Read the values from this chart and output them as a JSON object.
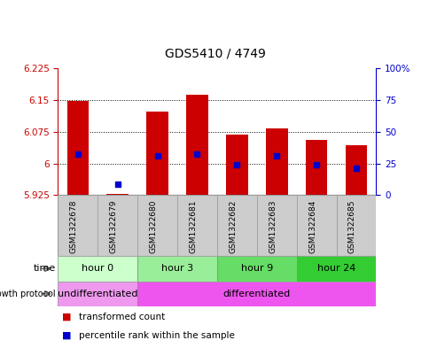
{
  "title": "GDS5410 / 4749",
  "samples": [
    "GSM1322678",
    "GSM1322679",
    "GSM1322680",
    "GSM1322681",
    "GSM1322682",
    "GSM1322683",
    "GSM1322684",
    "GSM1322685"
  ],
  "bar_bottom": 5.925,
  "bar_top": [
    6.148,
    5.928,
    6.122,
    6.163,
    6.068,
    6.082,
    6.055,
    6.043
  ],
  "blue_y": [
    6.022,
    5.952,
    6.018,
    6.022,
    5.998,
    6.018,
    5.998,
    5.988
  ],
  "bar_color": "#cc0000",
  "blue_color": "#0000cc",
  "ylim_left": [
    5.925,
    6.225
  ],
  "ylim_right": [
    0,
    100
  ],
  "yticks_left": [
    5.925,
    6.0,
    6.075,
    6.15,
    6.225
  ],
  "yticks_left_labels": [
    "5.925",
    "6",
    "6.075",
    "6.15",
    "6.225"
  ],
  "yticks_right": [
    0,
    25,
    50,
    75,
    100
  ],
  "yticks_right_labels": [
    "0",
    "25",
    "50",
    "75",
    "100%"
  ],
  "hlines": [
    6.0,
    6.075,
    6.15
  ],
  "time_groups": [
    {
      "label": "hour 0",
      "start": 0,
      "end": 2,
      "color": "#ccffcc"
    },
    {
      "label": "hour 3",
      "start": 2,
      "end": 4,
      "color": "#99ee99"
    },
    {
      "label": "hour 9",
      "start": 4,
      "end": 6,
      "color": "#66dd66"
    },
    {
      "label": "hour 24",
      "start": 6,
      "end": 8,
      "color": "#33cc33"
    }
  ],
  "protocol_groups": [
    {
      "label": "undifferentiated",
      "start": 0,
      "end": 2,
      "color": "#ee99ee"
    },
    {
      "label": "differentiated",
      "start": 2,
      "end": 8,
      "color": "#ee55ee"
    }
  ],
  "bar_width": 0.55,
  "axis_label_color_left": "#cc0000",
  "axis_label_color_right": "#0000cc",
  "plot_bg": "#ffffff",
  "outer_bg": "#ffffff",
  "sample_box_color": "#cccccc",
  "sample_box_edge": "#999999"
}
